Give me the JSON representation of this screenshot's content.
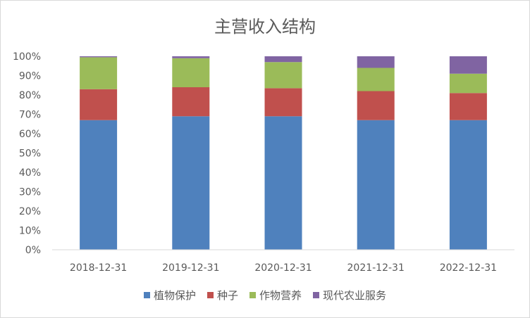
{
  "chart_data": {
    "type": "bar",
    "stacked": true,
    "percent": true,
    "title": "主营收入结构",
    "xlabel": "",
    "ylabel": "",
    "categories": [
      "2018-12-31",
      "2019-12-31",
      "2020-12-31",
      "2021-12-31",
      "2022-12-31"
    ],
    "y_ticks": [
      "0%",
      "10%",
      "20%",
      "30%",
      "40%",
      "50%",
      "60%",
      "70%",
      "80%",
      "90%",
      "100%"
    ],
    "ylim": [
      0,
      100
    ],
    "grid": false,
    "legend_position": "bottom",
    "series": [
      {
        "name": "植物保护",
        "color": "#4f81bd",
        "values": [
          67,
          69,
          69,
          67,
          67
        ]
      },
      {
        "name": "种子",
        "color": "#c0504d",
        "values": [
          16,
          15,
          14.5,
          15,
          14
        ]
      },
      {
        "name": "作物营养",
        "color": "#9bbb59",
        "values": [
          16.5,
          15,
          13.5,
          12,
          10
        ]
      },
      {
        "name": "现代农业服务",
        "color": "#8064a2",
        "values": [
          0.5,
          1,
          3,
          6,
          9
        ]
      }
    ]
  }
}
